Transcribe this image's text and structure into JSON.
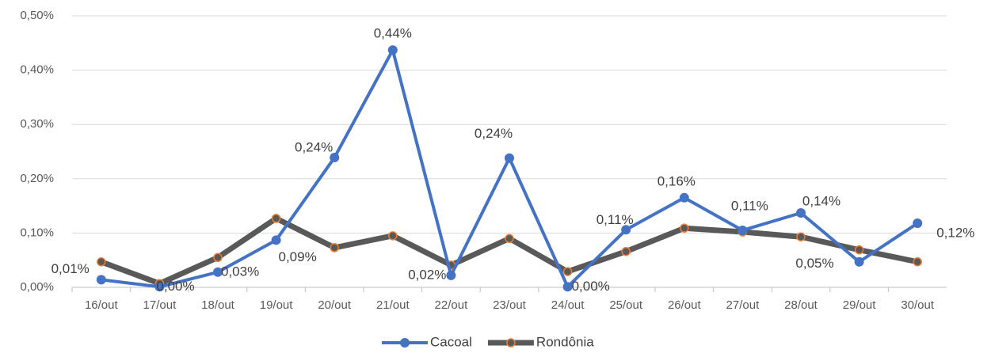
{
  "chart_data": {
    "type": "line",
    "categories": [
      "16/out",
      "17/out",
      "18/out",
      "19/out",
      "20/out",
      "21/out",
      "22/out",
      "23/out",
      "24/out",
      "25/out",
      "26/out",
      "27/out",
      "28/out",
      "29/out",
      "30/out"
    ],
    "series": [
      {
        "name": "Cacoal",
        "color": "#4472c4",
        "values": [
          0.014,
          0.001,
          0.028,
          0.087,
          0.239,
          0.437,
          0.022,
          0.238,
          0.001,
          0.106,
          0.165,
          0.105,
          0.137,
          0.047,
          0.118
        ],
        "value_labels": [
          "0,01%",
          "0,00%",
          "0,03%",
          "0,09%",
          "0,24%",
          "0,44%",
          "0,02%",
          "0,24%",
          "0,00%",
          "0,11%",
          "0,16%",
          "0,11%",
          "0,14%",
          "0,05%",
          "0,12%"
        ]
      },
      {
        "name": "Rondônia",
        "color": "#595959",
        "marker_edge": "#ed7d31",
        "values": [
          0.047,
          0.007,
          0.055,
          0.127,
          0.073,
          0.095,
          0.041,
          0.09,
          0.029,
          0.066,
          0.109,
          0.102,
          0.093,
          0.069,
          0.047
        ]
      }
    ],
    "ylim": [
      0,
      0.5
    ],
    "yticks": [
      {
        "value": 0,
        "label": "0,00%"
      },
      {
        "value": 0.1,
        "label": "0,10%"
      },
      {
        "value": 0.2,
        "label": "0,20%"
      },
      {
        "value": 0.3,
        "label": "0,30%"
      },
      {
        "value": 0.4,
        "label": "0,40%"
      },
      {
        "value": 0.5,
        "label": "0,50%"
      }
    ],
    "grid": true,
    "legend": "bottom"
  }
}
